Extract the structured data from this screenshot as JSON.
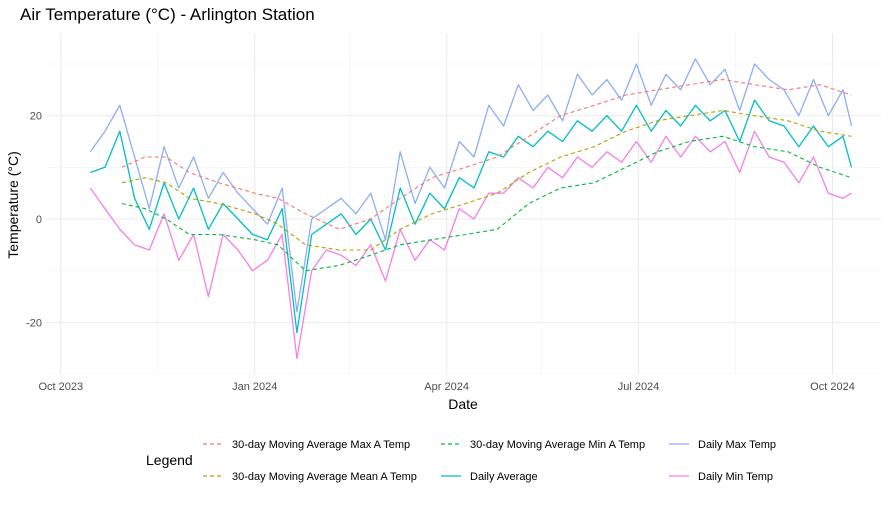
{
  "chart_data": {
    "type": "line",
    "title": "Air Temperature (°C) - Arlington Station",
    "xlabel": "Date",
    "ylabel": "Temperature (°C)",
    "xlim": [
      "2023-09-24",
      "2024-10-24"
    ],
    "ylim": [
      -30,
      36
    ],
    "x_ticks": [
      {
        "date": "2023-10-01",
        "label": "Oct 2023"
      },
      {
        "date": "2024-01-01",
        "label": "Jan 2024"
      },
      {
        "date": "2024-04-01",
        "label": "Apr 2024"
      },
      {
        "date": "2024-07-01",
        "label": "Jul 2024"
      },
      {
        "date": "2024-10-01",
        "label": "Oct 2024"
      }
    ],
    "y_ticks": [
      -20,
      0,
      20
    ],
    "grid": true,
    "legend": {
      "title": "Legend",
      "placement": "bottom",
      "entries": [
        {
          "label": "30-day Moving Average Max A Temp",
          "color": "#F8766D",
          "dash": true
        },
        {
          "label": "30-day Moving Average Mean A Temp",
          "color": "#B79F00",
          "dash": true
        },
        {
          "label": "30-day Moving Average Min A Temp",
          "color": "#00BA38",
          "dash": true
        },
        {
          "label": "Daily Average",
          "color": "#00BFC4",
          "dash": false
        },
        {
          "label": "Daily Max Temp",
          "color": "#8FADF5",
          "dash": false
        },
        {
          "label": "Daily Min Temp",
          "color": "#F57FE8",
          "dash": false
        }
      ]
    },
    "series": [
      {
        "name": "Daily Max Temp",
        "color": "#8FADF5",
        "dash": false,
        "x": [
          "2023-10-15",
          "2023-10-22",
          "2023-10-29",
          "2023-11-05",
          "2023-11-12",
          "2023-11-19",
          "2023-11-26",
          "2023-12-03",
          "2023-12-10",
          "2023-12-17",
          "2023-12-24",
          "2023-12-31",
          "2024-01-07",
          "2024-01-14",
          "2024-01-21",
          "2024-01-28",
          "2024-02-04",
          "2024-02-11",
          "2024-02-18",
          "2024-02-25",
          "2024-03-03",
          "2024-03-10",
          "2024-03-17",
          "2024-03-24",
          "2024-03-31",
          "2024-04-07",
          "2024-04-14",
          "2024-04-21",
          "2024-04-28",
          "2024-05-05",
          "2024-05-12",
          "2024-05-19",
          "2024-05-26",
          "2024-06-02",
          "2024-06-09",
          "2024-06-16",
          "2024-06-23",
          "2024-06-30",
          "2024-07-07",
          "2024-07-14",
          "2024-07-21",
          "2024-07-28",
          "2024-08-04",
          "2024-08-11",
          "2024-08-18",
          "2024-08-25",
          "2024-09-01",
          "2024-09-08",
          "2024-09-15",
          "2024-09-22",
          "2024-09-29",
          "2024-10-06",
          "2024-10-10"
        ],
        "y": [
          13,
          17,
          22,
          12,
          2,
          14,
          6,
          12,
          4,
          9,
          5,
          2,
          -1,
          6,
          -18,
          0,
          2,
          4,
          1,
          5,
          -4,
          13,
          3,
          10,
          6,
          15,
          12,
          22,
          18,
          26,
          21,
          24,
          19,
          28,
          24,
          27,
          23,
          30,
          22,
          28,
          25,
          31,
          26,
          29,
          21,
          30,
          27,
          25,
          20,
          27,
          20,
          25,
          18
        ]
      },
      {
        "name": "Daily Average",
        "color": "#00BFC4",
        "dash": false,
        "x": [
          "2023-10-15",
          "2023-10-22",
          "2023-10-29",
          "2023-11-05",
          "2023-11-12",
          "2023-11-19",
          "2023-11-26",
          "2023-12-03",
          "2023-12-10",
          "2023-12-17",
          "2023-12-24",
          "2023-12-31",
          "2024-01-07",
          "2024-01-14",
          "2024-01-21",
          "2024-01-28",
          "2024-02-04",
          "2024-02-11",
          "2024-02-18",
          "2024-02-25",
          "2024-03-03",
          "2024-03-10",
          "2024-03-17",
          "2024-03-24",
          "2024-03-31",
          "2024-04-07",
          "2024-04-14",
          "2024-04-21",
          "2024-04-28",
          "2024-05-05",
          "2024-05-12",
          "2024-05-19",
          "2024-05-26",
          "2024-06-02",
          "2024-06-09",
          "2024-06-16",
          "2024-06-23",
          "2024-06-30",
          "2024-07-07",
          "2024-07-14",
          "2024-07-21",
          "2024-07-28",
          "2024-08-04",
          "2024-08-11",
          "2024-08-18",
          "2024-08-25",
          "2024-09-01",
          "2024-09-08",
          "2024-09-15",
          "2024-09-22",
          "2024-09-29",
          "2024-10-06",
          "2024-10-10"
        ],
        "y": [
          9,
          10,
          17,
          4,
          -2,
          7,
          0,
          6,
          -2,
          3,
          0,
          -3,
          -4,
          2,
          -22,
          -3,
          -1,
          1,
          -3,
          0,
          -6,
          6,
          -1,
          5,
          2,
          8,
          6,
          13,
          12,
          16,
          14,
          17,
          15,
          19,
          17,
          20,
          17,
          22,
          17,
          21,
          18,
          22,
          19,
          21,
          15,
          23,
          19,
          18,
          14,
          18,
          14,
          16,
          10
        ]
      },
      {
        "name": "Daily Min Temp",
        "color": "#F57FE8",
        "dash": false,
        "x": [
          "2023-10-15",
          "2023-10-22",
          "2023-10-29",
          "2023-11-05",
          "2023-11-12",
          "2023-11-19",
          "2023-11-26",
          "2023-12-03",
          "2023-12-10",
          "2023-12-17",
          "2023-12-24",
          "2023-12-31",
          "2024-01-07",
          "2024-01-14",
          "2024-01-21",
          "2024-01-28",
          "2024-02-04",
          "2024-02-11",
          "2024-02-18",
          "2024-02-25",
          "2024-03-03",
          "2024-03-10",
          "2024-03-17",
          "2024-03-24",
          "2024-03-31",
          "2024-04-07",
          "2024-04-14",
          "2024-04-21",
          "2024-04-28",
          "2024-05-05",
          "2024-05-12",
          "2024-05-19",
          "2024-05-26",
          "2024-06-02",
          "2024-06-09",
          "2024-06-16",
          "2024-06-23",
          "2024-06-30",
          "2024-07-07",
          "2024-07-14",
          "2024-07-21",
          "2024-07-28",
          "2024-08-04",
          "2024-08-11",
          "2024-08-18",
          "2024-08-25",
          "2024-09-01",
          "2024-09-08",
          "2024-09-15",
          "2024-09-22",
          "2024-09-29",
          "2024-10-06",
          "2024-10-10"
        ],
        "y": [
          6,
          2,
          -2,
          -5,
          -6,
          1,
          -8,
          -3,
          -15,
          -3,
          -6,
          -10,
          -8,
          -3,
          -27,
          -10,
          -6,
          -7,
          -9,
          -5,
          -12,
          -2,
          -8,
          -4,
          -6,
          2,
          0,
          5,
          5,
          8,
          6,
          10,
          8,
          12,
          10,
          13,
          11,
          15,
          11,
          16,
          12,
          16,
          13,
          15,
          9,
          17,
          12,
          11,
          7,
          12,
          5,
          4,
          5
        ]
      },
      {
        "name": "30-day Moving Average Max A Temp",
        "color": "#F8766D",
        "dash": true,
        "x": [
          "2023-10-30",
          "2023-11-10",
          "2023-11-20",
          "2023-12-01",
          "2023-12-15",
          "2024-01-01",
          "2024-01-12",
          "2024-01-25",
          "2024-02-10",
          "2024-02-25",
          "2024-03-10",
          "2024-03-25",
          "2024-04-10",
          "2024-04-25",
          "2024-05-10",
          "2024-05-25",
          "2024-06-10",
          "2024-06-25",
          "2024-07-10",
          "2024-07-25",
          "2024-08-10",
          "2024-08-25",
          "2024-09-10",
          "2024-09-25",
          "2024-10-10"
        ],
        "y": [
          10,
          12,
          12,
          9,
          7,
          5,
          4,
          1,
          -2,
          0,
          4,
          8,
          10,
          12,
          16,
          20,
          22,
          24,
          25,
          26,
          27,
          26,
          25,
          26,
          24
        ]
      },
      {
        "name": "30-day Moving Average Mean A Temp",
        "color": "#B79F00",
        "dash": true,
        "x": [
          "2023-10-30",
          "2023-11-10",
          "2023-11-20",
          "2023-12-01",
          "2023-12-15",
          "2024-01-01",
          "2024-01-12",
          "2024-01-25",
          "2024-02-10",
          "2024-02-25",
          "2024-03-10",
          "2024-03-25",
          "2024-04-10",
          "2024-04-25",
          "2024-05-10",
          "2024-05-25",
          "2024-06-10",
          "2024-06-25",
          "2024-07-10",
          "2024-07-25",
          "2024-08-10",
          "2024-08-25",
          "2024-09-10",
          "2024-09-25",
          "2024-10-10"
        ],
        "y": [
          7,
          8,
          7,
          4,
          3,
          1,
          -1,
          -5,
          -6,
          -6,
          -2,
          1,
          3,
          5,
          9,
          12,
          14,
          17,
          19,
          20,
          21,
          20,
          19,
          17,
          16
        ]
      },
      {
        "name": "30-day Moving Average Min A Temp",
        "color": "#00BA38",
        "dash": true,
        "x": [
          "2023-10-30",
          "2023-11-10",
          "2023-11-20",
          "2023-12-01",
          "2023-12-15",
          "2024-01-01",
          "2024-01-12",
          "2024-01-25",
          "2024-02-10",
          "2024-02-25",
          "2024-03-10",
          "2024-03-25",
          "2024-04-10",
          "2024-04-25",
          "2024-05-10",
          "2024-05-25",
          "2024-06-10",
          "2024-06-25",
          "2024-07-10",
          "2024-07-25",
          "2024-08-10",
          "2024-08-25",
          "2024-09-10",
          "2024-09-25",
          "2024-10-10"
        ],
        "y": [
          3,
          2,
          0,
          -3,
          -3,
          -4,
          -5,
          -10,
          -9,
          -7,
          -5,
          -4,
          -3,
          -2,
          3,
          6,
          7,
          10,
          13,
          15,
          16,
          14,
          13,
          10,
          8
        ]
      }
    ]
  }
}
